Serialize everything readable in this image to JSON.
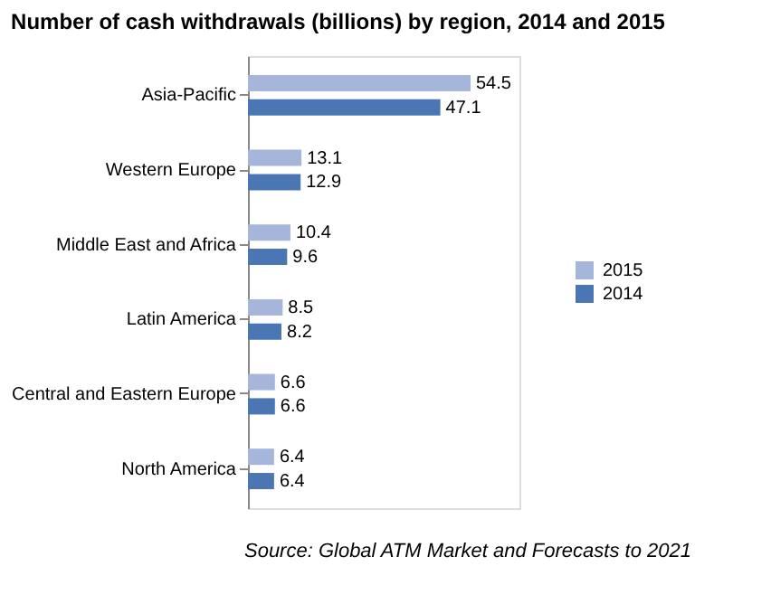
{
  "chart_data": {
    "type": "bar",
    "orientation": "horizontal",
    "title": "Number of cash withdrawals (billions) by region, 2014 and 2015",
    "categories": [
      "Asia-Pacific",
      "Western Europe",
      "Middle East and Africa",
      "Latin America",
      "Central and Eastern Europe",
      "North America"
    ],
    "series": [
      {
        "name": "2015",
        "color": "#a5b6da",
        "values": [
          54.5,
          13.1,
          10.4,
          8.5,
          6.6,
          6.4
        ]
      },
      {
        "name": "2014",
        "color": "#4a76b4",
        "values": [
          47.1,
          12.9,
          9.6,
          8.2,
          6.6,
          6.4
        ]
      }
    ],
    "data_labels": true,
    "legend": "right",
    "grid": false,
    "annotations": [
      "Source: Global ATM Market and Forecasts to 2021"
    ]
  }
}
